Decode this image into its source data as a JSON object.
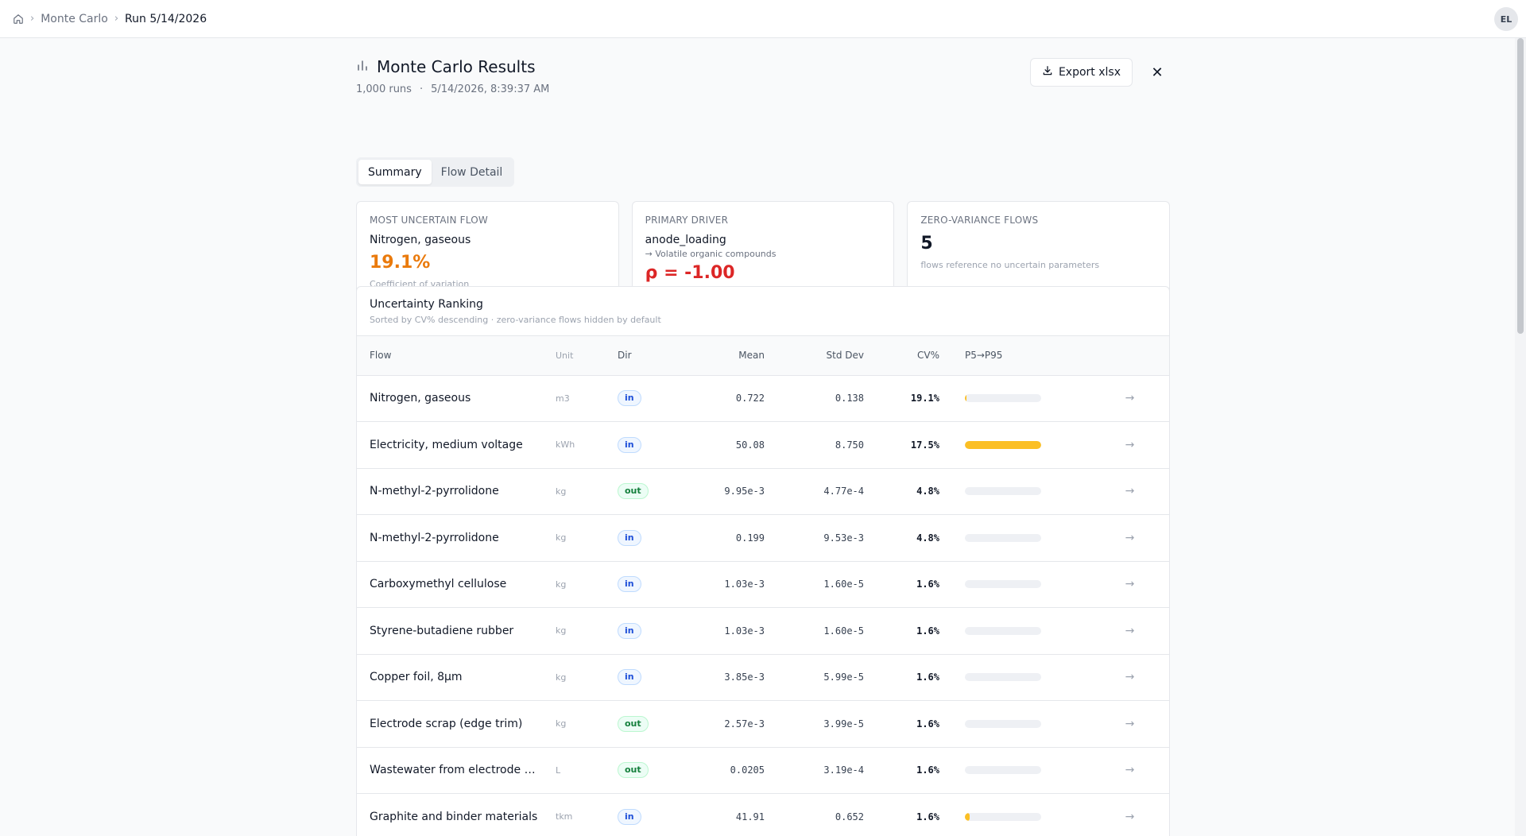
{
  "breadcrumb": {
    "home_icon": "home-icon",
    "items": [
      "Monte Carlo",
      "Run 5/14/2026"
    ]
  },
  "user": {
    "initials": "EL"
  },
  "header": {
    "title": "Monte Carlo Results",
    "title_icon": "bar-chart-icon",
    "runs": "1,000 runs",
    "separator": "·",
    "timestamp": "5/14/2026, 8:39:37 AM",
    "export_label": "Export xlsx",
    "close_label": "✕"
  },
  "tabs": [
    {
      "label": "Summary",
      "active": true
    },
    {
      "label": "Flow Detail",
      "active": false
    }
  ],
  "cards": {
    "most_uncertain": {
      "label": "MOST UNCERTAIN FLOW",
      "name": "Nitrogen, gaseous",
      "value": "19.1%",
      "footnote": "Coefficient of variation"
    },
    "primary_driver": {
      "label": "PRIMARY DRIVER",
      "name": "anode_loading",
      "target": "→ Volatile organic compounds",
      "value": "ρ = -1.00"
    },
    "zero_variance": {
      "label": "ZERO-VARIANCE FLOWS",
      "value": "5",
      "footnote": "flows reference no uncertain parameters"
    }
  },
  "ranking": {
    "title": "Uncertainty Ranking",
    "description": "Sorted by CV% descending · zero-variance flows hidden by default",
    "columns": {
      "flow": "Flow",
      "unit": "Unit",
      "dir": "Dir",
      "mean": "Mean",
      "std": "Std Dev",
      "cv": "CV%",
      "range": "P5→P95"
    },
    "rows": [
      {
        "flow": "Nitrogen, gaseous",
        "unit": "m3",
        "dir": "in",
        "mean": "0.722",
        "std": "0.138",
        "cv": "19.1%",
        "range_start": 0.0,
        "range_end": 0.01
      },
      {
        "flow": "Electricity, medium voltage",
        "unit": "kWh",
        "dir": "in",
        "mean": "50.08",
        "std": "8.750",
        "cv": "17.5%",
        "range_start": 0.0,
        "range_end": 1.0
      },
      {
        "flow": "N-methyl-2-pyrrolidone",
        "unit": "kg",
        "dir": "out",
        "mean": "9.95e-3",
        "std": "4.77e-4",
        "cv": "4.8%",
        "range_start": 0.0,
        "range_end": 0.0
      },
      {
        "flow": "N-methyl-2-pyrrolidone",
        "unit": "kg",
        "dir": "in",
        "mean": "0.199",
        "std": "9.53e-3",
        "cv": "4.8%",
        "range_start": 0.0,
        "range_end": 0.0
      },
      {
        "flow": "Carboxymethyl cellulose",
        "unit": "kg",
        "dir": "in",
        "mean": "1.03e-3",
        "std": "1.60e-5",
        "cv": "1.6%",
        "range_start": 0.0,
        "range_end": 0.0
      },
      {
        "flow": "Styrene-butadiene rubber",
        "unit": "kg",
        "dir": "in",
        "mean": "1.03e-3",
        "std": "1.60e-5",
        "cv": "1.6%",
        "range_start": 0.0,
        "range_end": 0.0
      },
      {
        "flow": "Copper foil, 8µm",
        "unit": "kg",
        "dir": "in",
        "mean": "3.85e-3",
        "std": "5.99e-5",
        "cv": "1.6%",
        "range_start": 0.0,
        "range_end": 0.0
      },
      {
        "flow": "Electrode scrap (edge trim)",
        "unit": "kg",
        "dir": "out",
        "mean": "2.57e-3",
        "std": "3.99e-5",
        "cv": "1.6%",
        "range_start": 0.0,
        "range_end": 0.0
      },
      {
        "flow": "Wastewater from electrode wa…",
        "unit": "L",
        "dir": "out",
        "mean": "0.0205",
        "std": "3.19e-4",
        "cv": "1.6%",
        "range_start": 0.0,
        "range_end": 0.0
      },
      {
        "flow": "Graphite and binder materials",
        "unit": "tkm",
        "dir": "in",
        "mean": "41.91",
        "std": "0.652",
        "cv": "1.6%",
        "range_start": 0.0,
        "range_end": 0.06
      }
    ]
  },
  "colors": {
    "accent_orange": "#ea7a0c",
    "driver_red": "#dc2626",
    "bar_fill": "#fbbf24",
    "badge_in": "#1d4ed8",
    "badge_out": "#15803d"
  }
}
